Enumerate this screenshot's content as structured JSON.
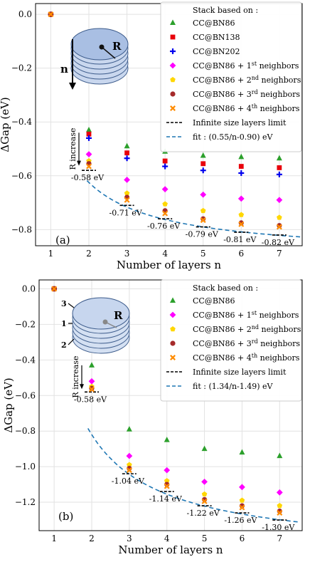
{
  "chart_data": [
    {
      "type": "scatter",
      "panel_label": "(a)",
      "xlabel": "Number of layers n",
      "ylabel": "ΔGap (eV)",
      "xlim": [
        0.6,
        7.6
      ],
      "ylim": [
        -0.86,
        0.04
      ],
      "xticks": [
        1,
        2,
        3,
        4,
        5,
        6,
        7
      ],
      "yticks": [
        0.0,
        -0.2,
        -0.4,
        -0.6,
        -0.8
      ],
      "ytick_labels": [
        "0.0",
        "−0.2",
        "−0.4",
        "−0.6",
        "−0.8"
      ],
      "grid": true,
      "legend_title": "Stack based on :",
      "legend_placement": "top-right",
      "series": [
        {
          "name": "CC@BN86",
          "marker": "triangle",
          "color": "#2ca02c",
          "x": [
            2,
            3,
            4,
            5,
            6,
            7
          ],
          "y": [
            -0.43,
            -0.49,
            -0.51,
            -0.525,
            -0.53,
            -0.535
          ]
        },
        {
          "name": "CC@BN138",
          "marker": "square",
          "color": "#e8000b",
          "x": [
            2,
            3,
            4,
            5,
            6,
            7
          ],
          "y": [
            -0.445,
            -0.515,
            -0.545,
            -0.555,
            -0.565,
            -0.57
          ]
        },
        {
          "name": "CC@BN202",
          "marker": "plus",
          "color": "#0000ee",
          "x": [
            2,
            3,
            4,
            5,
            6,
            7
          ],
          "y": [
            -0.46,
            -0.535,
            -0.565,
            -0.58,
            -0.59,
            -0.595
          ]
        },
        {
          "name": "CC@BN86 + 1st neighbors",
          "marker": "diamond",
          "color": "#ff00ff",
          "x": [
            2,
            3,
            4,
            5,
            6,
            7
          ],
          "y": [
            -0.52,
            -0.615,
            -0.65,
            -0.67,
            -0.685,
            -0.69
          ]
        },
        {
          "name": "CC@BN86 + 2nd neighbors",
          "marker": "pentagon",
          "color": "#ffd700",
          "x": [
            2,
            3,
            4,
            5,
            6,
            7
          ],
          "y": [
            -0.545,
            -0.665,
            -0.705,
            -0.73,
            -0.745,
            -0.755
          ]
        },
        {
          "name": "CC@BN86 + 3rd neighbors",
          "marker": "circle",
          "color": "#a52a2a",
          "x": [
            2,
            3,
            4,
            5,
            6,
            7
          ],
          "y": [
            -0.555,
            -0.68,
            -0.73,
            -0.76,
            -0.775,
            -0.785
          ]
        },
        {
          "name": "CC@BN86 + 4th neighbors",
          "marker": "x",
          "color": "#ff8c00",
          "x": [
            2,
            3,
            4,
            5,
            6,
            7
          ],
          "y": [
            -0.565,
            -0.69,
            -0.74,
            -0.765,
            -0.78,
            -0.79
          ]
        }
      ],
      "origin_point": {
        "x": 1,
        "y": 0.0
      },
      "limit_line_label": "Infinite size layers limit",
      "limits": [
        {
          "x": 2,
          "y": -0.58,
          "label": "-0.58 eV"
        },
        {
          "x": 3,
          "y": -0.71,
          "label": "-0.71 eV"
        },
        {
          "x": 4,
          "y": -0.76,
          "label": "-0.76 eV"
        },
        {
          "x": 5,
          "y": -0.79,
          "label": "-0.79 eV"
        },
        {
          "x": 6,
          "y": -0.81,
          "label": "-0.81 eV"
        },
        {
          "x": 7,
          "y": -0.82,
          "label": "-0.82 eV"
        }
      ],
      "fit": {
        "label": "fit : (0.55/n-0.90) eV",
        "a": 0.55,
        "b": -0.9,
        "x_range": [
          1.95,
          7.55
        ],
        "color": "#1f77b4"
      },
      "inset_labels": {
        "n": "n",
        "R": "R"
      },
      "r_increase_label": "R increase"
    },
    {
      "type": "scatter",
      "panel_label": "(b)",
      "xlabel": "Number of layers n",
      "ylabel": "ΔGap (eV)",
      "xlim": [
        0.6,
        7.6
      ],
      "ylim": [
        -1.36,
        0.05
      ],
      "xticks": [
        1,
        2,
        3,
        4,
        5,
        6,
        7
      ],
      "yticks": [
        0.0,
        -0.2,
        -0.4,
        -0.6,
        -0.8,
        -1.0,
        -1.2
      ],
      "ytick_labels": [
        "0.0",
        "−0.2",
        "−0.4",
        "−0.6",
        "−0.8",
        "−1.0",
        "−1.2"
      ],
      "grid": true,
      "legend_title": "Stack based on :",
      "legend_placement": "top-right",
      "series": [
        {
          "name": "CC@BN86",
          "marker": "triangle",
          "color": "#2ca02c",
          "x": [
            2,
            3,
            4,
            5,
            6,
            7
          ],
          "y": [
            -0.43,
            -0.79,
            -0.85,
            -0.9,
            -0.92,
            -0.94
          ]
        },
        {
          "name": "CC@BN86 + 1st neighbors",
          "marker": "diamond",
          "color": "#ff00ff",
          "x": [
            2,
            3,
            4,
            5,
            6,
            7
          ],
          "y": [
            -0.52,
            -0.94,
            -1.02,
            -1.085,
            -1.115,
            -1.145
          ]
        },
        {
          "name": "CC@BN86 + 2nd neighbors",
          "marker": "pentagon",
          "color": "#ffd700",
          "x": [
            2,
            3,
            4,
            5,
            6,
            7
          ],
          "y": [
            -0.55,
            -0.99,
            -1.08,
            -1.155,
            -1.19,
            -1.22
          ]
        },
        {
          "name": "CC@BN86 + 3rd neighbors",
          "marker": "circle",
          "color": "#a52a2a",
          "x": [
            2,
            3,
            4,
            5,
            6,
            7
          ],
          "y": [
            -0.56,
            -1.01,
            -1.1,
            -1.185,
            -1.22,
            -1.25
          ]
        },
        {
          "name": "CC@BN86 + 4th neighbors",
          "marker": "x",
          "color": "#ff8c00",
          "x": [
            2,
            3,
            4,
            5,
            6,
            7
          ],
          "y": [
            -0.565,
            -1.02,
            -1.11,
            -1.195,
            -1.23,
            -1.26
          ]
        }
      ],
      "origin_point": {
        "x": 1,
        "y": 0.0
      },
      "limit_line_label": "Infinite size layers limit",
      "limits": [
        {
          "x": 2,
          "y": -0.58,
          "label": "-0.58 eV"
        },
        {
          "x": 3,
          "y": -1.04,
          "label": "-1.04 eV"
        },
        {
          "x": 4,
          "y": -1.14,
          "label": "-1.14 eV"
        },
        {
          "x": 5,
          "y": -1.22,
          "label": "-1.22 eV"
        },
        {
          "x": 6,
          "y": -1.26,
          "label": "-1.26 eV"
        },
        {
          "x": 7,
          "y": -1.3,
          "label": "-1.30 eV"
        }
      ],
      "fit": {
        "label": "fit : (1.34/n-1.49) eV",
        "a": 1.34,
        "b": -1.49,
        "x_range": [
          1.9,
          7.55
        ],
        "color": "#1f77b4"
      },
      "inset_labels": {
        "n1": "3",
        "n2": "1",
        "n3": "2",
        "R": "R"
      },
      "r_increase_label": "R increase"
    }
  ]
}
